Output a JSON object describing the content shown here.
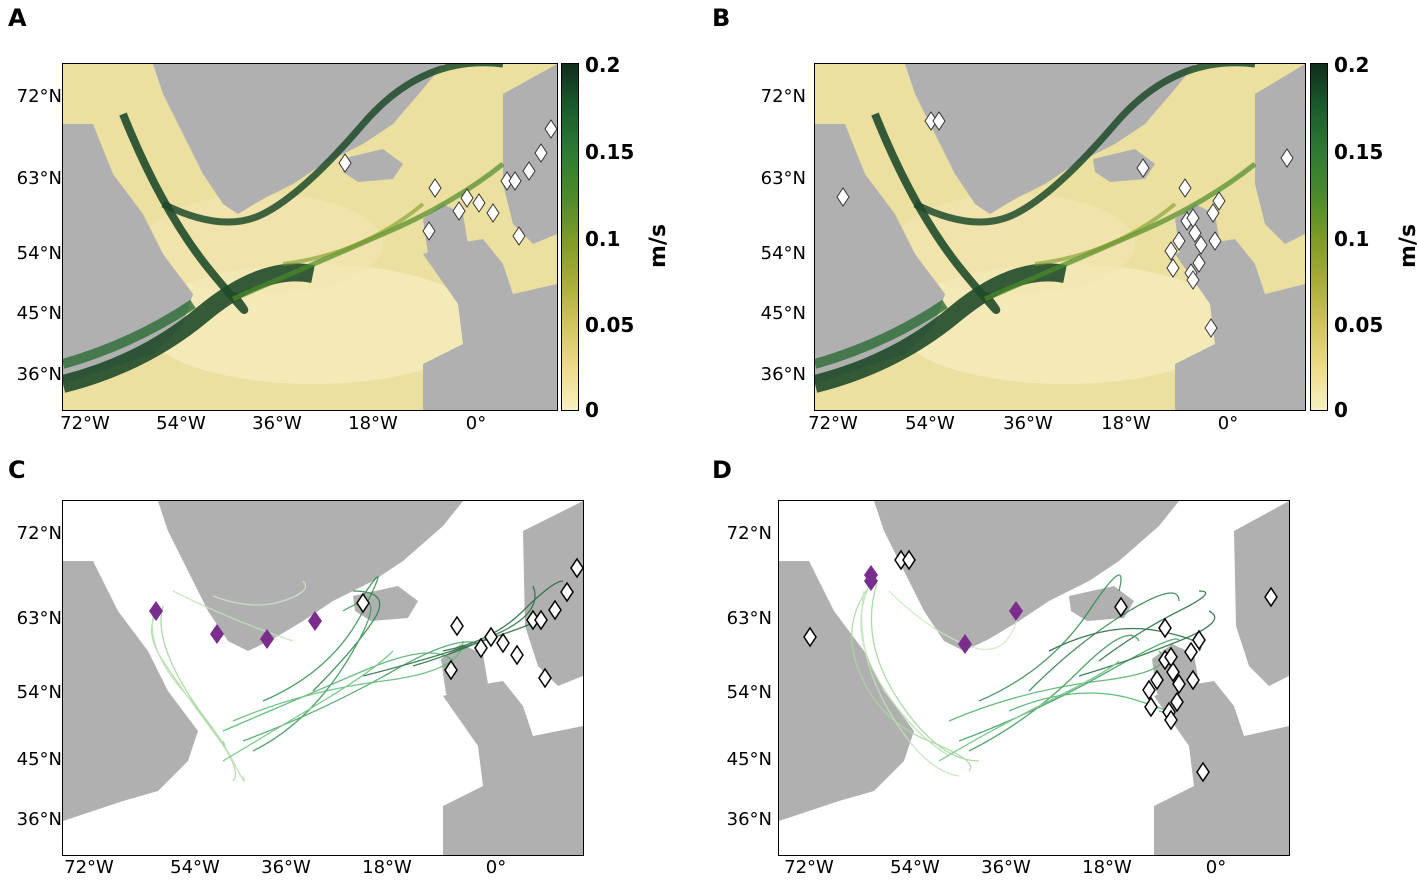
{
  "panels": [
    {
      "id": "A",
      "label": "A"
    },
    {
      "id": "B",
      "label": "B"
    },
    {
      "id": "C",
      "label": "C"
    },
    {
      "id": "D",
      "label": "D"
    }
  ],
  "lat_ticks": [
    "72°N",
    "63°N",
    "54°N",
    "45°N",
    "36°N"
  ],
  "lon_ticks": [
    "72°W",
    "54°W",
    "36°W",
    "18°W",
    "0°"
  ],
  "colorbar": {
    "ticks": [
      "0.2",
      "0.15",
      "0.1",
      "0.05",
      "0"
    ],
    "unit": "m/s",
    "colors": {
      "low": "#f8f1c0",
      "mid": "#7a9a27",
      "high": "#0f2e1c"
    }
  },
  "colors": {
    "land": "#b0b0b0",
    "ocean_low": "#ece0a0",
    "current": "#1f4a2a",
    "release_marker": "#7b2d8e",
    "endpoint_marker": "#ffffff",
    "track_light": "#a8d8a0",
    "track_dark": "#1f6b3a"
  }
}
